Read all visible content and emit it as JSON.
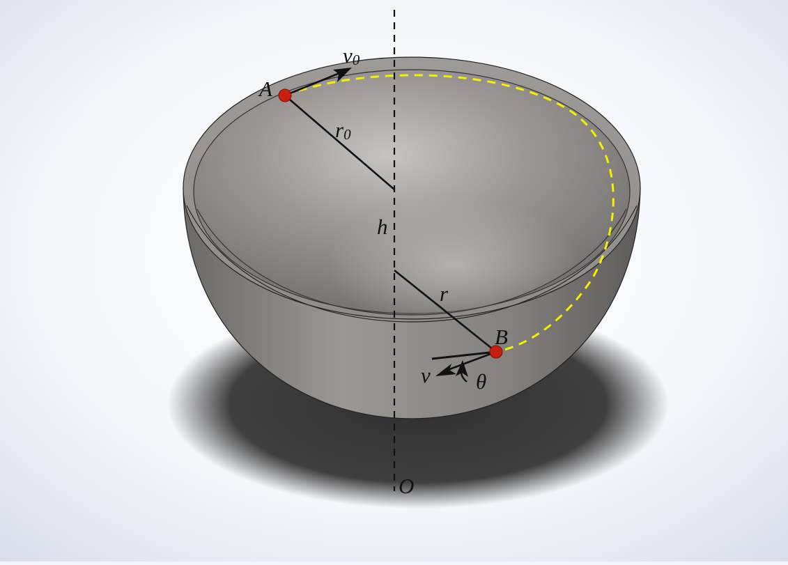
{
  "diagram": {
    "subject": "hemispherical-bowl-particle-motion",
    "colors": {
      "background_center": "#ffffff",
      "background_edge": "#d9dde8",
      "bowl": "#8a8784",
      "bowl_highlight": "#c4c2bf",
      "shadow": "#3a3a3a",
      "point": "#c81f0f",
      "trajectory": "#f4f000",
      "line": "#111111"
    },
    "labels": {
      "point_a": "A",
      "initial_velocity": "v",
      "initial_velocity_sub": "0",
      "initial_radius": "r",
      "initial_radius_sub": "0",
      "height": "h",
      "radius": "r",
      "point_b": "B",
      "velocity": "v",
      "angle": "θ",
      "origin": "O"
    }
  }
}
